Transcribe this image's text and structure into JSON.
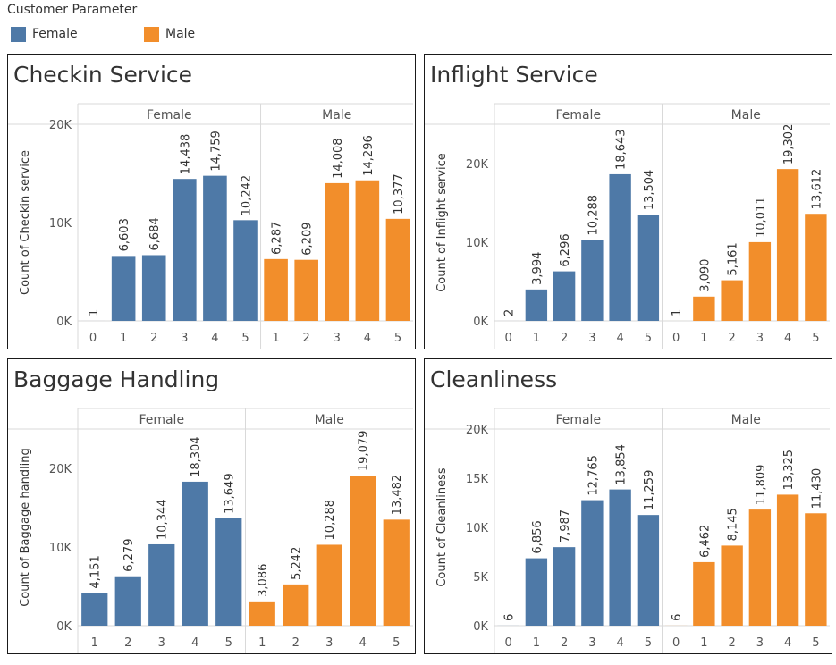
{
  "legend": {
    "title": "Customer Parameter",
    "items": [
      {
        "label": "Female",
        "color": "#4e79a7"
      },
      {
        "label": "Male",
        "color": "#f28e2b"
      }
    ]
  },
  "colors": {
    "Female": "#4e79a7",
    "Male": "#f28e2b",
    "grid": "#d9d9d9",
    "text": "#555555"
  },
  "chart_data": [
    {
      "type": "bar",
      "title": "Checkin Service",
      "ylabel": "Count of Checkin service",
      "ylim": [
        0,
        20000
      ],
      "yticks": [
        0,
        10000,
        20000
      ],
      "ytick_labels": [
        "0K",
        "10K",
        "20K"
      ],
      "facets": [
        {
          "name": "Female",
          "categories": [
            "0",
            "1",
            "2",
            "3",
            "4",
            "5"
          ],
          "values": [
            1,
            6603,
            6684,
            14438,
            14759,
            10242
          ],
          "labels": [
            "1",
            "6,603",
            "6,684",
            "14,438",
            "14,759",
            "10,242"
          ]
        },
        {
          "name": "Male",
          "categories": [
            "1",
            "2",
            "3",
            "4",
            "5"
          ],
          "values": [
            6287,
            6209,
            14008,
            14296,
            10377
          ],
          "labels": [
            "6,287",
            "6,209",
            "14,008",
            "14,296",
            "10,377"
          ]
        }
      ]
    },
    {
      "type": "bar",
      "title": "Inflight Service",
      "ylabel": "Count of Inflight service",
      "ylim": [
        0,
        25000
      ],
      "yticks": [
        0,
        10000,
        20000
      ],
      "ytick_labels": [
        "0K",
        "10K",
        "20K"
      ],
      "facets": [
        {
          "name": "Female",
          "categories": [
            "0",
            "1",
            "2",
            "3",
            "4",
            "5"
          ],
          "values": [
            2,
            3994,
            6296,
            10288,
            18643,
            13504
          ],
          "labels": [
            "2",
            "3,994",
            "6,296",
            "10,288",
            "18,643",
            "13,504"
          ]
        },
        {
          "name": "Male",
          "categories": [
            "0",
            "1",
            "2",
            "3",
            "4",
            "5"
          ],
          "values": [
            1,
            3090,
            5161,
            10011,
            19302,
            13612
          ],
          "labels": [
            "1",
            "3,090",
            "5,161",
            "10,011",
            "19,302",
            "13,612"
          ]
        }
      ]
    },
    {
      "type": "bar",
      "title": "Baggage Handling",
      "ylabel": "Count of Baggage handling",
      "ylim": [
        0,
        25000
      ],
      "yticks": [
        0,
        10000,
        20000
      ],
      "ytick_labels": [
        "0K",
        "10K",
        "20K"
      ],
      "facets": [
        {
          "name": "Female",
          "categories": [
            "1",
            "2",
            "3",
            "4",
            "5"
          ],
          "values": [
            4151,
            6279,
            10344,
            18304,
            13649
          ],
          "labels": [
            "4,151",
            "6,279",
            "10,344",
            "18,304",
            "13,649"
          ]
        },
        {
          "name": "Male",
          "categories": [
            "1",
            "2",
            "3",
            "4",
            "5"
          ],
          "values": [
            3086,
            5242,
            10288,
            19079,
            13482
          ],
          "labels": [
            "3,086",
            "5,242",
            "10,288",
            "19,079",
            "13,482"
          ]
        }
      ]
    },
    {
      "type": "bar",
      "title": "Cleanliness",
      "ylabel": "Count of Cleanliness",
      "ylim": [
        0,
        20000
      ],
      "yticks": [
        0,
        5000,
        10000,
        15000,
        20000
      ],
      "ytick_labels": [
        "0K",
        "5K",
        "10K",
        "15K",
        "20K"
      ],
      "facets": [
        {
          "name": "Female",
          "categories": [
            "0",
            "1",
            "2",
            "3",
            "4",
            "5"
          ],
          "values": [
            6,
            6856,
            7987,
            12765,
            13854,
            11259
          ],
          "labels": [
            "6",
            "6,856",
            "7,987",
            "12,765",
            "13,854",
            "11,259"
          ]
        },
        {
          "name": "Male",
          "categories": [
            "0",
            "1",
            "2",
            "3",
            "4",
            "5"
          ],
          "values": [
            6,
            6462,
            8145,
            11809,
            13325,
            11430
          ],
          "labels": [
            "6",
            "6,462",
            "8,145",
            "11,809",
            "13,325",
            "11,430"
          ]
        }
      ]
    }
  ]
}
